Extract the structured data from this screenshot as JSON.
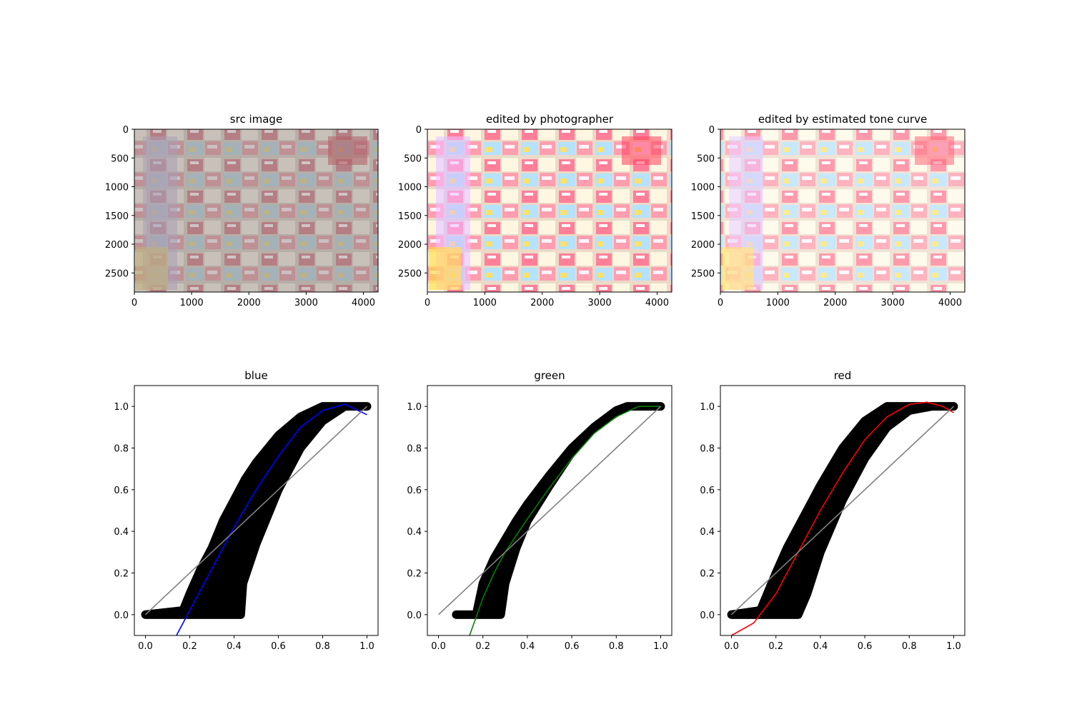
{
  "chart_data": [
    {
      "type": "image",
      "title": "src image",
      "xticks": [
        "0",
        "1000",
        "2000",
        "3000",
        "4000"
      ],
      "yticks": [
        "0",
        "500",
        "1000",
        "1500",
        "2000",
        "2500"
      ],
      "xlim": [
        0,
        4256
      ],
      "ylim": [
        2832,
        0
      ],
      "tone": "muted"
    },
    {
      "type": "image",
      "title": "edited by photographer",
      "xticks": [
        "0",
        "1000",
        "2000",
        "3000",
        "4000"
      ],
      "yticks": [
        "0",
        "500",
        "1000",
        "1500",
        "2000",
        "2500"
      ],
      "xlim": [
        0,
        4256
      ],
      "ylim": [
        2832,
        0
      ],
      "tone": "vivid"
    },
    {
      "type": "image",
      "title": "edited by estimated tone curve",
      "xticks": [
        "0",
        "1000",
        "2000",
        "3000",
        "4000"
      ],
      "yticks": [
        "0",
        "500",
        "1000",
        "1500",
        "2000",
        "2500"
      ],
      "xlim": [
        0,
        4256
      ],
      "ylim": [
        2832,
        0
      ],
      "tone": "bright"
    },
    {
      "type": "scatter",
      "title": "blue",
      "xlim": [
        -0.05,
        1.05
      ],
      "ylim": [
        -0.1,
        1.1
      ],
      "xticks": [
        "0.0",
        "0.2",
        "0.4",
        "0.6",
        "0.8",
        "1.0"
      ],
      "yticks": [
        "0.0",
        "0.2",
        "0.4",
        "0.6",
        "0.8",
        "1.0"
      ],
      "scatter_band": {
        "lower_x": [
          0.0,
          0.2,
          0.3,
          0.38,
          0.43,
          0.44,
          0.5,
          0.6,
          0.7,
          0.8,
          0.9,
          1.0
        ],
        "lower_y": [
          0.0,
          0.0,
          0.0,
          0.0,
          0.0,
          0.15,
          0.34,
          0.6,
          0.8,
          0.93,
          1.0,
          1.0
        ],
        "upper_x": [
          0.0,
          0.17,
          0.2,
          0.25,
          0.3,
          0.35,
          0.4,
          0.45,
          0.5,
          0.6,
          0.7,
          0.8,
          0.9,
          1.0
        ],
        "upper_y": [
          0.0,
          0.02,
          0.1,
          0.22,
          0.32,
          0.45,
          0.55,
          0.65,
          0.73,
          0.86,
          0.95,
          1.0,
          1.0,
          1.0
        ]
      },
      "series": [
        {
          "name": "",
          "color": "#0000ff",
          "x": [
            0.14,
            0.2,
            0.3,
            0.4,
            0.5,
            0.6,
            0.7,
            0.8,
            0.9,
            1.0
          ],
          "y": [
            -0.1,
            0.02,
            0.22,
            0.42,
            0.6,
            0.76,
            0.9,
            0.98,
            1.01,
            0.96
          ]
        },
        {
          "name": "",
          "color": "#808080",
          "x": [
            0,
            1
          ],
          "y": [
            0,
            1
          ]
        }
      ]
    },
    {
      "type": "scatter",
      "title": "green",
      "xlim": [
        -0.05,
        1.05
      ],
      "ylim": [
        -0.1,
        1.1
      ],
      "xticks": [
        "0.0",
        "0.2",
        "0.4",
        "0.6",
        "0.8",
        "1.0"
      ],
      "yticks": [
        "0.0",
        "0.2",
        "0.4",
        "0.6",
        "0.8",
        "1.0"
      ],
      "scatter_band": {
        "lower_x": [
          0.08,
          0.2,
          0.28,
          0.3,
          0.35,
          0.4,
          0.5,
          0.6,
          0.7,
          0.8,
          0.85,
          1.0
        ],
        "lower_y": [
          0.0,
          0.0,
          0.0,
          0.15,
          0.32,
          0.45,
          0.62,
          0.78,
          0.9,
          0.97,
          1.0,
          1.0
        ],
        "upper_x": [
          0.08,
          0.17,
          0.2,
          0.25,
          0.3,
          0.35,
          0.4,
          0.5,
          0.6,
          0.7,
          0.8,
          0.85,
          1.0
        ],
        "upper_y": [
          0.0,
          0.0,
          0.15,
          0.27,
          0.36,
          0.45,
          0.53,
          0.67,
          0.8,
          0.9,
          0.98,
          1.0,
          1.0
        ]
      },
      "series": [
        {
          "name": "",
          "color": "#008000",
          "x": [
            0.14,
            0.2,
            0.25,
            0.3,
            0.35,
            0.4,
            0.5,
            0.6,
            0.7,
            0.8,
            0.9,
            1.0
          ],
          "y": [
            -0.1,
            0.08,
            0.2,
            0.3,
            0.38,
            0.46,
            0.61,
            0.75,
            0.87,
            0.95,
            1.0,
            1.0
          ]
        },
        {
          "name": "",
          "color": "#808080",
          "x": [
            0,
            1
          ],
          "y": [
            0,
            1
          ]
        }
      ]
    },
    {
      "type": "scatter",
      "title": "red",
      "xlim": [
        -0.05,
        1.05
      ],
      "ylim": [
        -0.1,
        1.1
      ],
      "xticks": [
        "0.0",
        "0.2",
        "0.4",
        "0.6",
        "0.8",
        "1.0"
      ],
      "yticks": [
        "0.0",
        "0.2",
        "0.4",
        "0.6",
        "0.8",
        "1.0"
      ],
      "scatter_band": {
        "lower_x": [
          0.0,
          0.2,
          0.3,
          0.34,
          0.4,
          0.5,
          0.6,
          0.7,
          0.8,
          0.9,
          1.0
        ],
        "lower_y": [
          0.0,
          0.0,
          0.0,
          0.1,
          0.3,
          0.55,
          0.75,
          0.9,
          0.98,
          1.0,
          1.0
        ],
        "upper_x": [
          0.0,
          0.13,
          0.2,
          0.25,
          0.3,
          0.35,
          0.4,
          0.5,
          0.6,
          0.7,
          0.75,
          1.0
        ],
        "upper_y": [
          0.0,
          0.02,
          0.2,
          0.32,
          0.42,
          0.52,
          0.62,
          0.8,
          0.93,
          1.0,
          1.0,
          1.0
        ]
      },
      "series": [
        {
          "name": "",
          "color": "#ff0000",
          "x": [
            0.0,
            0.1,
            0.2,
            0.3,
            0.4,
            0.5,
            0.6,
            0.7,
            0.8,
            0.88,
            0.95,
            1.0
          ],
          "y": [
            -0.1,
            -0.04,
            0.1,
            0.3,
            0.5,
            0.68,
            0.84,
            0.95,
            1.01,
            1.02,
            1.0,
            0.97
          ]
        },
        {
          "name": "",
          "color": "#808080",
          "x": [
            0,
            1
          ],
          "y": [
            0,
            1
          ]
        }
      ]
    }
  ]
}
